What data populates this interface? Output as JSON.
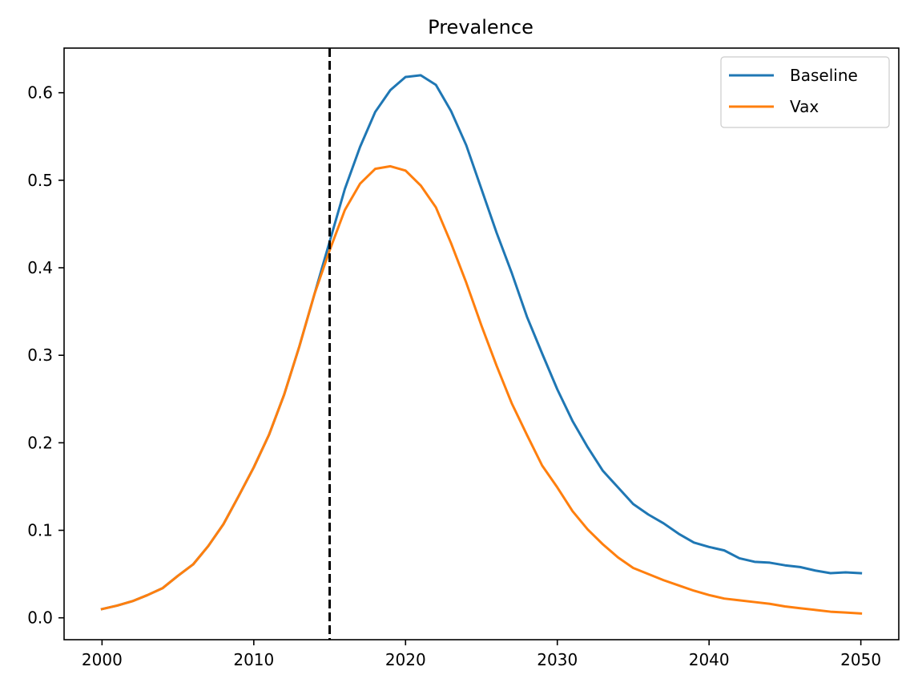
{
  "chart_data": {
    "type": "line",
    "title": "Prevalence",
    "xlabel": "",
    "ylabel": "",
    "xlim": [
      1997.5,
      2052.5
    ],
    "ylim": [
      -0.025,
      0.651
    ],
    "xticks": [
      2000,
      2010,
      2020,
      2030,
      2040,
      2050
    ],
    "xtick_labels": [
      "2000",
      "2010",
      "2020",
      "2030",
      "2040",
      "2050"
    ],
    "yticks": [
      0.0,
      0.1,
      0.2,
      0.3,
      0.4,
      0.5,
      0.6
    ],
    "ytick_labels": [
      "0.0",
      "0.1",
      "0.2",
      "0.3",
      "0.4",
      "0.5",
      "0.6"
    ],
    "grid": false,
    "legend_position": "top-right",
    "vline": {
      "x": 2015,
      "style": "dashed",
      "color": "#000000"
    },
    "x": [
      2000,
      2001,
      2002,
      2003,
      2004,
      2005,
      2006,
      2007,
      2008,
      2009,
      2010,
      2011,
      2012,
      2013,
      2014,
      2015,
      2016,
      2017,
      2018,
      2019,
      2020,
      2021,
      2022,
      2023,
      2024,
      2025,
      2026,
      2027,
      2028,
      2029,
      2030,
      2031,
      2032,
      2033,
      2034,
      2035,
      2036,
      2037,
      2038,
      2039,
      2040,
      2041,
      2042,
      2043,
      2044,
      2045,
      2046,
      2047,
      2048,
      2049,
      2050
    ],
    "series": [
      {
        "name": "Baseline",
        "color": "#1f77b4",
        "values": [
          0.01,
          0.014,
          0.019,
          0.026,
          0.034,
          0.048,
          0.061,
          0.082,
          0.107,
          0.139,
          0.172,
          0.209,
          0.255,
          0.31,
          0.37,
          0.43,
          0.49,
          0.538,
          0.578,
          0.603,
          0.618,
          0.62,
          0.609,
          0.579,
          0.54,
          0.49,
          0.44,
          0.394,
          0.344,
          0.302,
          0.261,
          0.225,
          0.195,
          0.168,
          0.149,
          0.13,
          0.118,
          0.108,
          0.096,
          0.086,
          0.081,
          0.077,
          0.068,
          0.064,
          0.063,
          0.06,
          0.058,
          0.054,
          0.051,
          0.052,
          0.051
        ]
      },
      {
        "name": "Vax",
        "color": "#ff7f0e",
        "values": [
          0.01,
          0.014,
          0.019,
          0.026,
          0.034,
          0.048,
          0.061,
          0.082,
          0.107,
          0.139,
          0.172,
          0.209,
          0.255,
          0.31,
          0.37,
          0.42,
          0.466,
          0.496,
          0.513,
          0.516,
          0.511,
          0.494,
          0.469,
          0.428,
          0.383,
          0.334,
          0.288,
          0.245,
          0.209,
          0.174,
          0.149,
          0.122,
          0.101,
          0.084,
          0.069,
          0.057,
          0.05,
          0.043,
          0.037,
          0.031,
          0.026,
          0.022,
          0.02,
          0.018,
          0.016,
          0.013,
          0.011,
          0.009,
          0.007,
          0.006,
          0.005
        ]
      }
    ]
  }
}
